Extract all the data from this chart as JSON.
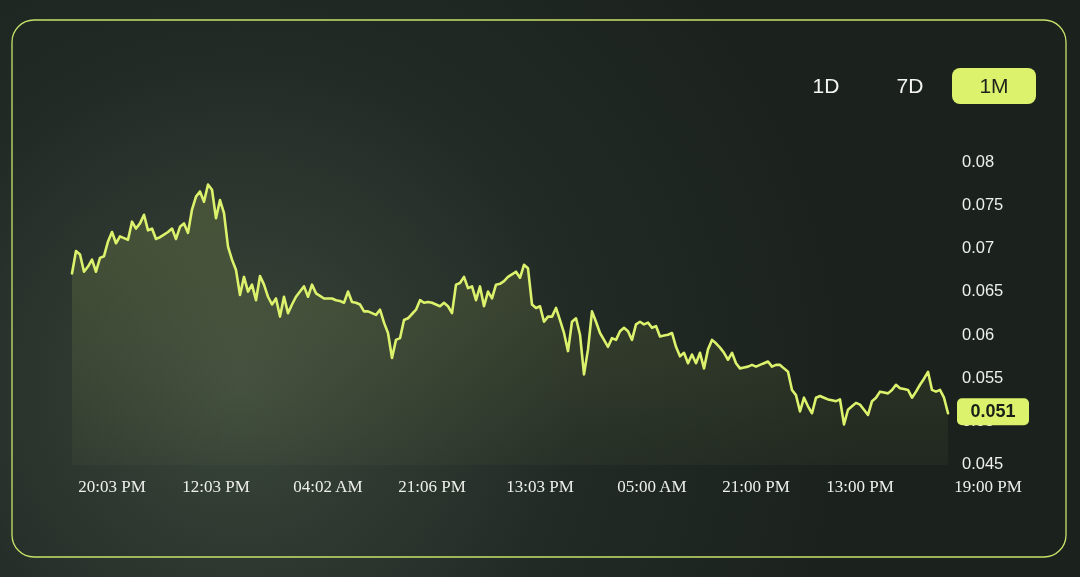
{
  "chart_data": {
    "type": "area",
    "categories": [
      null,
      null,
      null,
      null,
      null,
      null,
      null,
      null,
      null,
      null,
      "20:03 PM",
      null,
      null,
      null,
      null,
      null,
      null,
      null,
      null,
      null,
      null,
      null,
      null,
      null,
      null,
      null,
      null,
      null,
      null,
      null,
      null,
      null,
      null,
      null,
      null,
      null,
      "12:03 PM",
      null,
      null,
      null,
      null,
      null,
      null,
      null,
      null,
      null,
      null,
      null,
      null,
      null,
      null,
      null,
      null,
      null,
      null,
      null,
      null,
      null,
      null,
      null,
      null,
      null,
      null,
      null,
      "04:02 AM",
      null,
      null,
      null,
      null,
      null,
      null,
      null,
      null,
      null,
      null,
      null,
      null,
      null,
      null,
      null,
      null,
      null,
      null,
      null,
      null,
      null,
      null,
      null,
      null,
      null,
      "21:06 PM",
      null,
      null,
      null,
      null,
      null,
      null,
      null,
      null,
      null,
      null,
      null,
      null,
      null,
      null,
      null,
      null,
      null,
      null,
      null,
      null,
      null,
      null,
      null,
      null,
      null,
      null,
      "13:03 PM",
      null,
      null,
      null,
      null,
      null,
      null,
      null,
      null,
      null,
      null,
      null,
      null,
      null,
      null,
      null,
      null,
      null,
      null,
      null,
      null,
      null,
      null,
      null,
      null,
      null,
      null,
      null,
      "05:00 AM",
      null,
      null,
      null,
      null,
      null,
      null,
      null,
      null,
      null,
      null,
      null,
      null,
      null,
      null,
      null,
      null,
      null,
      null,
      null,
      null,
      null,
      null,
      null,
      null,
      null,
      "21:00 PM",
      null,
      null,
      null,
      null,
      null,
      null,
      null,
      null,
      null,
      null,
      null,
      null,
      null,
      null,
      null,
      null,
      null,
      null,
      null,
      null,
      null,
      null,
      null,
      null,
      null,
      "13:00 PM",
      null,
      null,
      null,
      null,
      null,
      null,
      null,
      null,
      null,
      null,
      null,
      null,
      null,
      null,
      null,
      null,
      null,
      null,
      null,
      null,
      null,
      null,
      null,
      null,
      null,
      null,
      null,
      null,
      null,
      null,
      null,
      "19:00 PM",
      null
    ],
    "series": [
      {
        "color": "#dcf26c",
        "values": [
          0.0672,
          0.0698,
          0.0694,
          0.0674,
          0.068,
          0.0688,
          0.0674,
          0.069,
          0.0692,
          0.0709,
          0.072,
          0.0707,
          0.0715,
          0.0713,
          0.0711,
          0.0732,
          0.0724,
          0.073,
          0.074,
          0.0722,
          0.0724,
          0.0712,
          0.0714,
          0.0717,
          0.072,
          0.0724,
          0.0712,
          0.0726,
          0.073,
          0.0719,
          0.0746,
          0.0761,
          0.0767,
          0.0755,
          0.0775,
          0.0769,
          0.0736,
          0.0757,
          0.0742,
          0.0703,
          0.0688,
          0.0676,
          0.0647,
          0.0668,
          0.0651,
          0.0659,
          0.0641,
          0.0669,
          0.0659,
          0.0645,
          0.0636,
          0.0643,
          0.0622,
          0.0645,
          0.0626,
          0.0636,
          0.0645,
          0.0651,
          0.0657,
          0.0645,
          0.0659,
          0.0649,
          0.0646,
          0.0643,
          0.0643,
          0.0643,
          0.0641,
          0.064,
          0.0638,
          0.0651,
          0.0639,
          0.0638,
          0.0636,
          0.0628,
          0.0628,
          0.0626,
          0.0624,
          0.063,
          0.0615,
          0.0603,
          0.0574,
          0.0595,
          0.0597,
          0.0618,
          0.062,
          0.0625,
          0.063,
          0.0641,
          0.0638,
          0.0639,
          0.0638,
          0.0636,
          0.0634,
          0.0638,
          0.0634,
          0.0626,
          0.0659,
          0.0661,
          0.0668,
          0.0655,
          0.0657,
          0.0641,
          0.0657,
          0.0634,
          0.0651,
          0.0643,
          0.0659,
          0.066,
          0.0663,
          0.0668,
          0.0671,
          0.0674,
          0.0667,
          0.0682,
          0.0678,
          0.0636,
          0.0632,
          0.0634,
          0.0616,
          0.0622,
          0.0622,
          0.0632,
          0.0618,
          0.0603,
          0.0582,
          0.0616,
          0.062,
          0.0601,
          0.0555,
          0.0584,
          0.0628,
          0.0616,
          0.0603,
          0.0595,
          0.0587,
          0.0597,
          0.0595,
          0.0605,
          0.0609,
          0.0605,
          0.0595,
          0.0613,
          0.0616,
          0.0613,
          0.0615,
          0.0609,
          0.0611,
          0.0599,
          0.06,
          0.0601,
          0.0603,
          0.0587,
          0.0576,
          0.058,
          0.0568,
          0.0578,
          0.0568,
          0.058,
          0.0562,
          0.0584,
          0.0595,
          0.0591,
          0.0586,
          0.058,
          0.0572,
          0.058,
          0.0568,
          0.0562,
          0.0563,
          0.0564,
          0.0566,
          0.0564,
          0.0566,
          0.0568,
          0.057,
          0.0564,
          0.0566,
          0.0566,
          0.0562,
          0.0558,
          0.0537,
          0.0531,
          0.0512,
          0.0528,
          0.0518,
          0.051,
          0.0528,
          0.053,
          0.0528,
          0.0526,
          0.0525,
          0.0524,
          0.0526,
          0.0497,
          0.0514,
          0.0518,
          0.0522,
          0.052,
          0.0514,
          0.0508,
          0.0524,
          0.0528,
          0.0535,
          0.0534,
          0.0533,
          0.0537,
          0.0543,
          0.0539,
          0.0538,
          0.0537,
          0.0528,
          0.0535,
          0.0543,
          0.055,
          0.0558,
          0.0537,
          0.0535,
          0.0537,
          0.0528,
          0.051,
          null,
          null,
          null,
          null,
          null,
          null,
          null,
          null,
          null,
          null,
          null
        ],
        "value_labels": [
          null,
          null,
          null,
          null,
          null,
          null,
          null,
          null,
          null,
          null,
          null,
          null,
          null,
          null,
          null,
          null,
          null,
          null,
          null,
          null,
          null,
          null,
          null,
          null,
          null,
          null,
          null,
          null,
          null,
          null,
          null,
          null,
          null,
          null,
          null,
          null,
          null,
          null,
          null,
          null,
          null,
          null,
          null,
          null,
          null,
          null,
          null,
          null,
          null,
          null,
          null,
          null,
          null,
          null,
          null,
          null,
          null,
          null,
          null,
          null,
          null,
          null,
          null,
          null,
          null,
          null,
          null,
          null,
          null,
          null,
          null,
          null,
          null,
          null,
          null,
          null,
          null,
          null,
          null,
          null,
          null,
          null,
          null,
          null,
          null,
          null,
          null,
          null,
          null,
          null,
          null,
          null,
          null,
          null,
          null,
          null,
          null,
          null,
          null,
          null,
          null,
          null,
          null,
          null,
          null,
          null,
          null,
          null,
          null,
          null,
          null,
          null,
          null,
          null,
          null,
          null,
          null,
          null,
          null,
          null,
          null,
          null,
          null,
          null,
          null,
          null,
          null,
          null,
          null,
          null,
          null,
          null,
          null,
          null,
          null,
          null,
          null,
          null,
          null,
          null,
          null,
          null,
          null,
          null,
          null,
          null,
          null,
          null,
          null,
          null,
          null,
          null,
          null,
          null,
          null,
          null,
          null,
          null,
          null,
          null,
          null,
          null,
          null,
          null,
          null,
          null,
          null,
          null,
          null,
          null,
          null,
          null,
          null,
          null,
          null,
          null,
          null,
          null,
          null,
          null,
          null,
          null,
          null,
          null,
          null,
          null,
          null,
          null,
          null,
          null,
          null,
          null,
          null,
          null,
          null,
          null,
          null,
          null,
          null,
          null,
          null,
          null,
          null,
          null,
          null,
          null,
          null,
          null,
          null,
          null,
          null,
          null,
          null,
          null,
          null,
          null,
          null,
          null,
          null,
          "0.051",
          null,
          null,
          null,
          null,
          null,
          null,
          null,
          null,
          null,
          null,
          null
        ]
      }
    ],
    "ylim": [
      0.045,
      0.08
    ],
    "yticks": [
      0.045,
      0.05,
      0.055,
      0.06,
      0.065,
      0.07,
      0.075,
      0.08
    ],
    "annotations": [
      "1D",
      "7D",
      "1M"
    ]
  }
}
